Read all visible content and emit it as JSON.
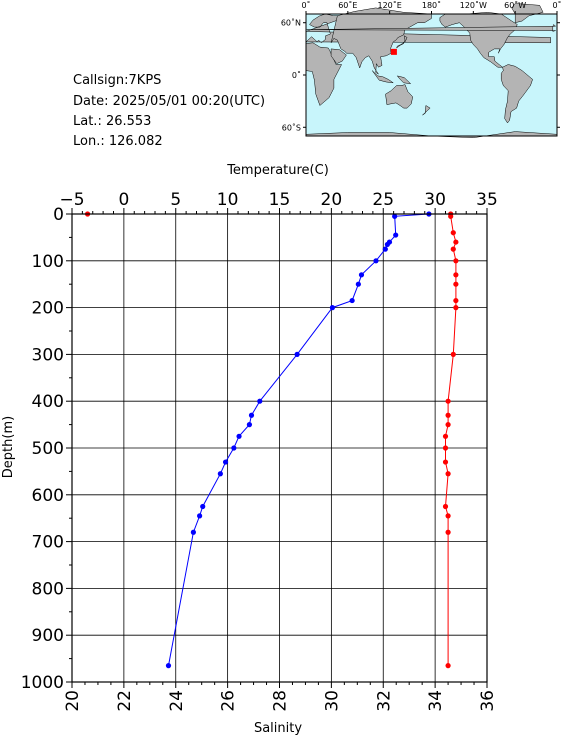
{
  "station": {
    "callsign": "Callsign:7KPS",
    "date": "Date:  2025/05/01 00:20(UTC)",
    "lat": "Lat.:   26.553",
    "lon": "Lon.:  126.082"
  },
  "map": {
    "lon_labels": [
      "0˚",
      "60˚E",
      "120˚E",
      "180˚",
      "120˚W",
      "60˚W",
      "0˚"
    ],
    "lat_labels": [
      "60˚N",
      "0˚",
      "60˚S"
    ],
    "station_marker_lon": 126.082,
    "station_marker_lat": 26.553,
    "ocean_color": "#c8f5fb",
    "land_color": "#b4b4b4",
    "marker_color": "#ff0000"
  },
  "chart_data": {
    "type": "line",
    "yaxis": {
      "label": "Depth(m)",
      "lim": [
        1000,
        0
      ],
      "ticks": [
        0,
        100,
        200,
        300,
        400,
        500,
        600,
        700,
        800,
        900,
        1000
      ]
    },
    "top_axis": {
      "label": "Temperature(C)",
      "lim": [
        -5,
        35
      ],
      "ticks": [
        -5,
        0,
        5,
        10,
        15,
        20,
        25,
        30,
        35
      ]
    },
    "bottom_axis": {
      "label": "Salinity",
      "lim": [
        20,
        36
      ],
      "ticks": [
        20,
        22,
        24,
        26,
        28,
        30,
        32,
        34,
        36
      ]
    },
    "grid": true,
    "series": [
      {
        "axis": "top",
        "color": "#0000ff",
        "points": [
          {
            "x": 29.4,
            "y": 0
          },
          {
            "x": 26.1,
            "y": 5
          },
          {
            "x": 26.2,
            "y": 45
          },
          {
            "x": 25.6,
            "y": 60
          },
          {
            "x": 25.4,
            "y": 65
          },
          {
            "x": 25.2,
            "y": 75
          },
          {
            "x": 24.3,
            "y": 100
          },
          {
            "x": 22.9,
            "y": 130
          },
          {
            "x": 22.6,
            "y": 150
          },
          {
            "x": 22.0,
            "y": 185
          },
          {
            "x": 20.1,
            "y": 200
          },
          {
            "x": 16.7,
            "y": 300
          },
          {
            "x": 13.1,
            "y": 400
          },
          {
            "x": 12.3,
            "y": 430
          },
          {
            "x": 12.1,
            "y": 450
          },
          {
            "x": 11.1,
            "y": 475
          },
          {
            "x": 10.6,
            "y": 500
          },
          {
            "x": 9.8,
            "y": 530
          },
          {
            "x": 9.3,
            "y": 555
          },
          {
            "x": 7.6,
            "y": 625
          },
          {
            "x": 7.3,
            "y": 645
          },
          {
            "x": 6.7,
            "y": 680
          },
          {
            "x": 4.3,
            "y": 965
          }
        ]
      },
      {
        "axis": "bottom",
        "color": "#ff0000",
        "points": [
          {
            "x": 20.6,
            "y": 0
          },
          {
            "x": 34.6,
            "y": 0
          },
          {
            "x": 34.6,
            "y": 5
          },
          {
            "x": 34.7,
            "y": 40
          },
          {
            "x": 34.8,
            "y": 60
          },
          {
            "x": 34.7,
            "y": 75
          },
          {
            "x": 34.8,
            "y": 100
          },
          {
            "x": 34.8,
            "y": 130
          },
          {
            "x": 34.8,
            "y": 150
          },
          {
            "x": 34.8,
            "y": 185
          },
          {
            "x": 34.8,
            "y": 200
          },
          {
            "x": 34.7,
            "y": 300
          },
          {
            "x": 34.5,
            "y": 400
          },
          {
            "x": 34.5,
            "y": 430
          },
          {
            "x": 34.5,
            "y": 450
          },
          {
            "x": 34.4,
            "y": 475
          },
          {
            "x": 34.4,
            "y": 500
          },
          {
            "x": 34.4,
            "y": 530
          },
          {
            "x": 34.5,
            "y": 555
          },
          {
            "x": 34.4,
            "y": 625
          },
          {
            "x": 34.5,
            "y": 645
          },
          {
            "x": 34.5,
            "y": 680
          },
          {
            "x": 34.5,
            "y": 965
          }
        ]
      }
    ]
  }
}
